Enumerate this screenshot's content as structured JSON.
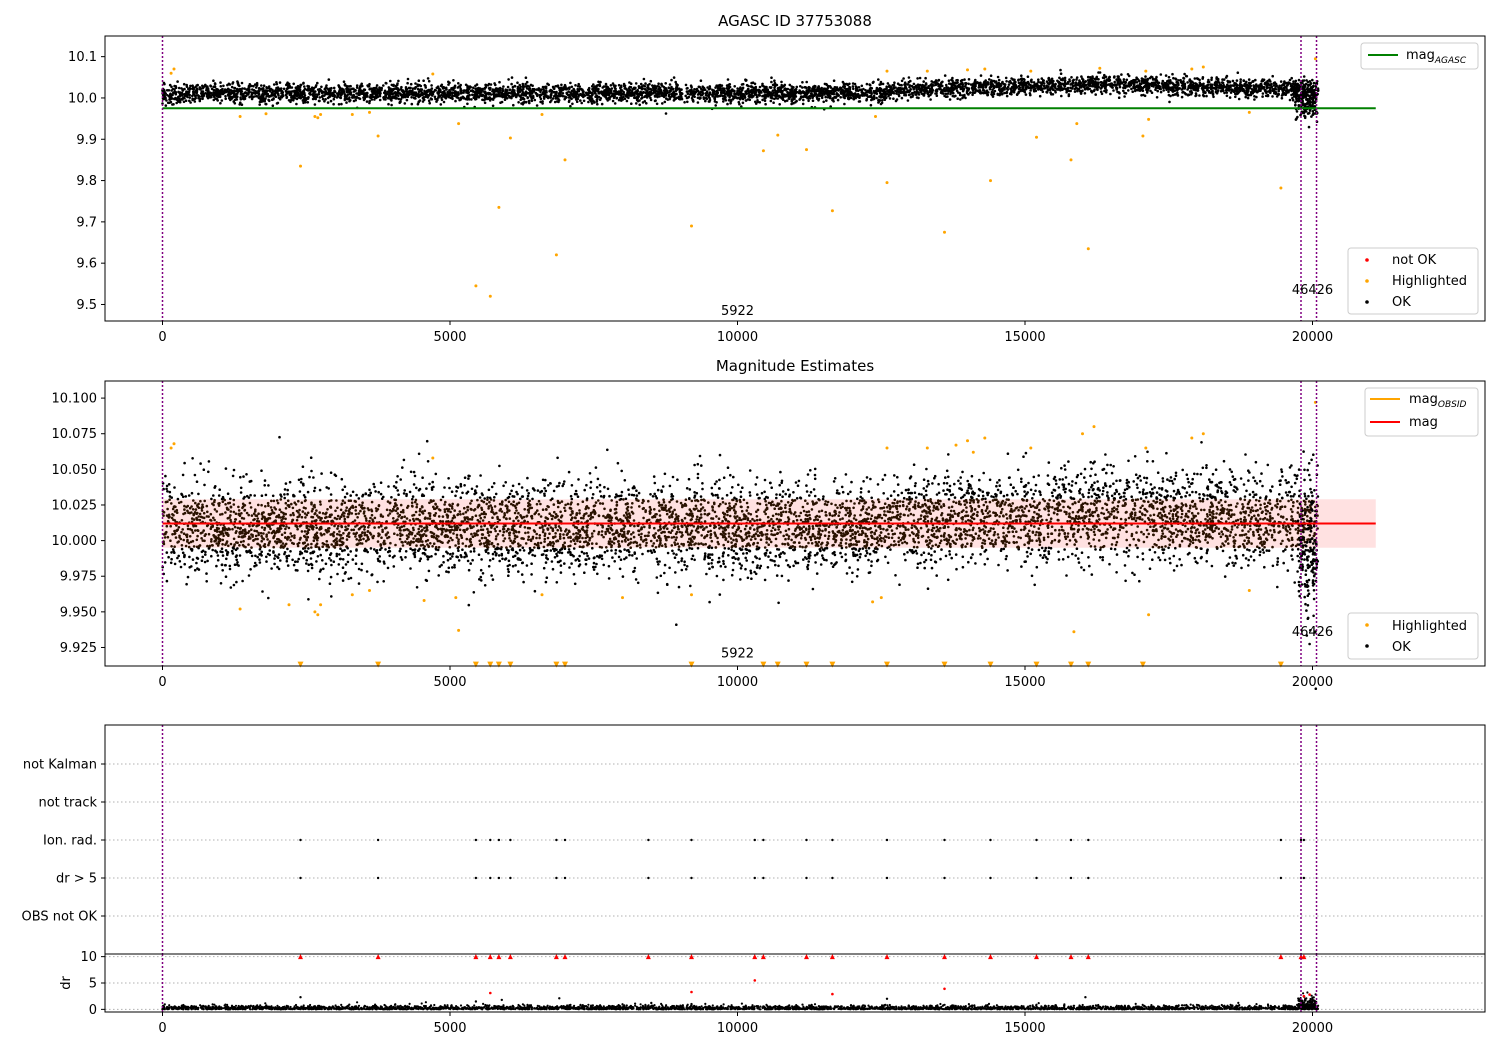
{
  "chart_data": [
    {
      "type": "scatter",
      "title": "AGASC ID 37753088",
      "xlim": [
        -1000,
        23000
      ],
      "ylim": [
        9.46,
        10.15
      ],
      "xticks": [
        0,
        5000,
        10000,
        15000,
        20000
      ],
      "yticks": [
        9.5,
        9.6,
        9.7,
        9.8,
        9.9,
        10.0,
        10.1
      ],
      "ytick_labels": [
        "9.5",
        "9.6",
        "9.7",
        "9.8",
        "9.9",
        "10.0",
        "10.1"
      ],
      "grid": false,
      "legends": [
        {
          "placement": "top-right",
          "entries": [
            {
              "label": "mag",
              "sub": "AGASC",
              "color": "#008000",
              "kind": "line"
            }
          ]
        },
        {
          "placement": "lower-right",
          "entries": [
            {
              "label": "not OK",
              "color": "#ff0000",
              "kind": "dot"
            },
            {
              "label": "Highlighted",
              "color": "#ffa500",
              "kind": "dot"
            },
            {
              "label": "OK",
              "color": "#000000",
              "kind": "dot"
            }
          ]
        }
      ],
      "reference_line": {
        "label": "mag_AGASC",
        "y": 9.975,
        "x_range": [
          0,
          21100
        ],
        "color": "#008000"
      },
      "obsid_lines": [
        0,
        19800,
        20070
      ],
      "obsid_labels": [
        {
          "text": "5922",
          "x": 10000,
          "y": 9.475
        },
        {
          "text": "46426",
          "x": 20000,
          "y": 9.525
        }
      ],
      "band": {
        "x_range": [
          0,
          20100
        ],
        "center": 10.012,
        "noise": 0.016,
        "trend_late": 0.02
      },
      "series": [
        {
          "name": "OK",
          "color": "#000000",
          "points": []
        },
        {
          "name": "Highlighted",
          "color": "#ffa500",
          "points": [
            [
              2400,
              9.835
            ],
            [
              3750,
              9.908
            ],
            [
              5150,
              9.938
            ],
            [
              5450,
              9.545
            ],
            [
              5700,
              9.52
            ],
            [
              5850,
              9.735
            ],
            [
              6050,
              9.903
            ],
            [
              6850,
              9.62
            ],
            [
              7000,
              9.85
            ],
            [
              9200,
              9.69
            ],
            [
              10450,
              9.872
            ],
            [
              10700,
              9.91
            ],
            [
              11200,
              9.875
            ],
            [
              11650,
              9.727
            ],
            [
              12600,
              9.795
            ],
            [
              13600,
              9.675
            ],
            [
              14400,
              9.8
            ],
            [
              15200,
              9.905
            ],
            [
              15800,
              9.85
            ],
            [
              15900,
              9.938
            ],
            [
              16100,
              9.635
            ],
            [
              17050,
              9.908
            ],
            [
              17150,
              9.948
            ],
            [
              19450,
              9.782
            ],
            [
              150,
              10.06
            ],
            [
              200,
              10.07
            ],
            [
              4700,
              10.058
            ],
            [
              12600,
              10.065
            ],
            [
              13300,
              10.065
            ],
            [
              14000,
              10.068
            ],
            [
              14300,
              10.07
            ],
            [
              15100,
              10.065
            ],
            [
              16300,
              10.072
            ],
            [
              17100,
              10.065
            ],
            [
              17900,
              10.07
            ],
            [
              18100,
              10.075
            ],
            [
              20050,
              10.095
            ],
            [
              2650,
              9.955
            ],
            [
              2700,
              9.952
            ],
            [
              2750,
              9.96
            ],
            [
              3300,
              9.96
            ],
            [
              3600,
              9.965
            ],
            [
              6600,
              9.96
            ],
            [
              1350,
              9.955
            ],
            [
              1800,
              9.962
            ],
            [
              12400,
              9.955
            ],
            [
              18900,
              9.965
            ]
          ]
        },
        {
          "name": "not OK",
          "color": "#ff0000",
          "points": []
        }
      ]
    },
    {
      "type": "scatter",
      "title": "Magnitude Estimates",
      "xlim": [
        -1000,
        23000
      ],
      "ylim": [
        9.912,
        10.112
      ],
      "xticks": [
        0,
        5000,
        10000,
        15000,
        20000
      ],
      "yticks": [
        9.925,
        9.95,
        9.975,
        10.0,
        10.025,
        10.05,
        10.075,
        10.1
      ],
      "ytick_labels": [
        "9.925",
        "9.950",
        "9.975",
        "10.000",
        "10.025",
        "10.050",
        "10.075",
        "10.100"
      ],
      "grid": false,
      "legends": [
        {
          "placement": "top-right",
          "entries": [
            {
              "label": "mag",
              "sub": "OBSID",
              "color": "#ffa500",
              "kind": "line"
            },
            {
              "label": "mag",
              "sub": "",
              "color": "#ff0000",
              "kind": "line"
            }
          ]
        },
        {
          "placement": "lower-right",
          "entries": [
            {
              "label": "Highlighted",
              "color": "#ffa500",
              "kind": "dot"
            },
            {
              "label": "OK",
              "color": "#000000",
              "kind": "dot"
            }
          ]
        }
      ],
      "reference_line": {
        "label": "mag",
        "y": 10.012,
        "x_range": [
          0,
          21100
        ],
        "color": "#ff0000"
      },
      "shaded_band": {
        "y_range": [
          9.995,
          10.029
        ],
        "x_range": [
          0,
          21100
        ],
        "color": "#ffc8c8"
      },
      "obsid_lines": [
        0,
        19800,
        20070
      ],
      "obsid_labels": [
        {
          "text": "5922",
          "x": 10000,
          "y": 9.918
        },
        {
          "text": "46426",
          "x": 20000,
          "y": 9.933
        }
      ],
      "band": {
        "x_range": [
          0,
          20100
        ],
        "center": 10.009,
        "noise": 0.016,
        "trend_late": 0.01
      },
      "clipped_markers": {
        "y": 9.913,
        "x": [
          2400,
          3750,
          5450,
          5700,
          5850,
          6050,
          6850,
          7000,
          9200,
          10450,
          10700,
          11200,
          11650,
          12600,
          13600,
          14400,
          15200,
          15800,
          16100,
          17050,
          19450
        ]
      },
      "series": [
        {
          "name": "OK",
          "color": "#000000",
          "points": []
        },
        {
          "name": "Highlighted",
          "color": "#ffa500",
          "points": [
            [
              150,
              10.065
            ],
            [
              200,
              10.068
            ],
            [
              4700,
              10.058
            ],
            [
              12600,
              10.065
            ],
            [
              13300,
              10.065
            ],
            [
              13800,
              10.067
            ],
            [
              14000,
              10.07
            ],
            [
              14100,
              10.062
            ],
            [
              14300,
              10.072
            ],
            [
              15100,
              10.065
            ],
            [
              16000,
              10.075
            ],
            [
              16200,
              10.08
            ],
            [
              17100,
              10.065
            ],
            [
              17900,
              10.072
            ],
            [
              18100,
              10.075
            ],
            [
              20050,
              10.097
            ],
            [
              1350,
              9.952
            ],
            [
              2200,
              9.955
            ],
            [
              2650,
              9.95
            ],
            [
              2700,
              9.948
            ],
            [
              2750,
              9.955
            ],
            [
              3300,
              9.962
            ],
            [
              3600,
              9.965
            ],
            [
              4550,
              9.958
            ],
            [
              5100,
              9.96
            ],
            [
              6600,
              9.962
            ],
            [
              8000,
              9.96
            ],
            [
              9200,
              9.962
            ],
            [
              12350,
              9.957
            ],
            [
              12500,
              9.96
            ],
            [
              17150,
              9.948
            ],
            [
              18900,
              9.965
            ],
            [
              15850,
              9.936
            ],
            [
              5150,
              9.937
            ]
          ]
        }
      ]
    },
    {
      "type": "scatter",
      "title": "",
      "xlim": [
        -1000,
        23000
      ],
      "ylim": [
        0,
        6
      ],
      "categories": [
        "OBS not OK",
        "dr > 5",
        "Ion. rad.",
        "not track",
        "not Kalman"
      ],
      "grid": "horizontal dotted",
      "obsid_lines": [
        0,
        19800,
        20070
      ],
      "flag_marks": {
        "dr > 5": [
          2400,
          3750,
          5450,
          5700,
          5850,
          6050,
          6850,
          7000,
          8450,
          9200,
          10300,
          10450,
          11200,
          11650,
          12600,
          13600,
          14400,
          15200,
          15800,
          16100,
          19450,
          19800,
          19850
        ],
        "Ion. rad.": [
          2400,
          3750,
          5450,
          5700,
          5850,
          6050,
          6850,
          7000,
          8450,
          9200,
          10300,
          10450,
          11200,
          11650,
          12600,
          13600,
          14400,
          15200,
          15800,
          16100,
          19450,
          19800,
          19850
        ]
      }
    },
    {
      "type": "scatter",
      "title": "",
      "ylabel": "dr",
      "xlim": [
        -1000,
        23000
      ],
      "ylim": [
        -0.5,
        10.5
      ],
      "xticks": [
        0,
        5000,
        10000,
        15000,
        20000
      ],
      "yticks": [
        0,
        5,
        10
      ],
      "ytick_labels": [
        "0",
        "5",
        "10"
      ],
      "grid": "horizontal dotted",
      "obsid_lines": [
        0,
        19800,
        20070
      ],
      "clipped_markers": {
        "y": 10,
        "x": [
          2400,
          3750,
          5450,
          5700,
          5850,
          6050,
          6850,
          7000,
          8450,
          9200,
          10300,
          10450,
          11200,
          11650,
          12600,
          13600,
          14400,
          15200,
          15800,
          16100,
          19450,
          19800,
          19850
        ]
      },
      "series": [
        {
          "name": "OK",
          "color": "#000000",
          "points": [
            [
              2400,
              2.3
            ],
            [
              5450,
              1.5
            ],
            [
              5900,
              1.8
            ],
            [
              6900,
              2.1
            ],
            [
              8500,
              1.2
            ],
            [
              12600,
              2.0
            ],
            [
              16050,
              2.3
            ],
            [
              9200,
              1.0
            ]
          ]
        },
        {
          "name": "not OK",
          "color": "#ff0000",
          "points": [
            [
              5700,
              3.1
            ],
            [
              9200,
              3.3
            ],
            [
              10300,
              5.5
            ],
            [
              11650,
              2.9
            ],
            [
              13600,
              3.9
            ],
            [
              19850,
              2.5
            ],
            [
              19950,
              2.8
            ]
          ]
        }
      ]
    }
  ]
}
